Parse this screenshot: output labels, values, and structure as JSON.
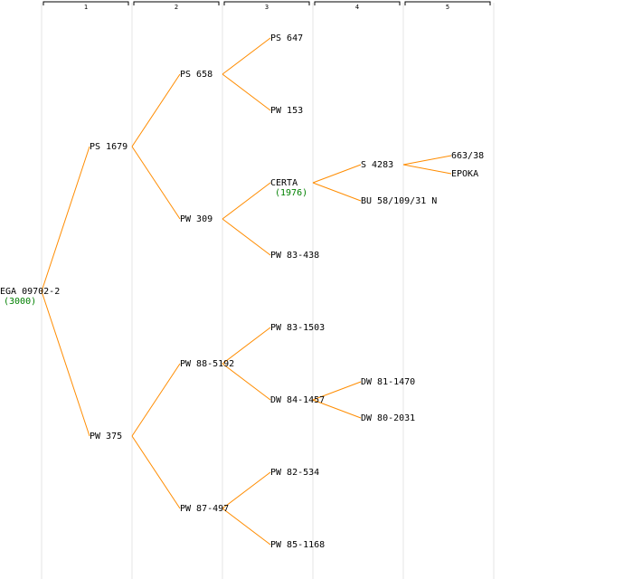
{
  "colors": {
    "edge": "#ff8c00",
    "year": "#008000",
    "column_line": "#e6e6e6",
    "bracket": "#000000"
  },
  "generations": [
    "1",
    "2",
    "3",
    "4",
    "5"
  ],
  "nodes": [
    {
      "id": "n0",
      "label": "EGA 09702-2",
      "year": "(3000)",
      "gen": 0,
      "row": 0
    },
    {
      "id": "n1",
      "label": "PS 1679",
      "gen": 1,
      "row": 1,
      "parent": "n0"
    },
    {
      "id": "n2",
      "label": "PW 375",
      "gen": 1,
      "row": 2,
      "parent": "n0"
    },
    {
      "id": "n3",
      "label": "PS 658",
      "gen": 2,
      "row": 3,
      "parent": "n1"
    },
    {
      "id": "n4",
      "label": "PW 309",
      "gen": 2,
      "row": 4,
      "parent": "n1"
    },
    {
      "id": "n5",
      "label": "PW 88-5192",
      "gen": 2,
      "row": 5,
      "parent": "n2"
    },
    {
      "id": "n6",
      "label": "PW 87-497",
      "gen": 2,
      "row": 6,
      "parent": "n2"
    },
    {
      "id": "n7",
      "label": "PS 647",
      "gen": 3,
      "row": 7,
      "parent": "n3"
    },
    {
      "id": "n8",
      "label": "PW 153",
      "gen": 3,
      "row": 8,
      "parent": "n3"
    },
    {
      "id": "n9",
      "label": "CERTA",
      "year": "(1976)",
      "gen": 3,
      "row": 9,
      "parent": "n4"
    },
    {
      "id": "n10",
      "label": "PW 83-438",
      "gen": 3,
      "row": 10,
      "parent": "n4"
    },
    {
      "id": "n11",
      "label": "PW 83-1503",
      "gen": 3,
      "row": 11,
      "parent": "n5"
    },
    {
      "id": "n12",
      "label": "DW 84-1457",
      "gen": 3,
      "row": 12,
      "parent": "n5"
    },
    {
      "id": "n13",
      "label": "PW 82-534",
      "gen": 3,
      "row": 13,
      "parent": "n6"
    },
    {
      "id": "n14",
      "label": "PW 85-1168",
      "gen": 3,
      "row": 14,
      "parent": "n6"
    },
    {
      "id": "n15",
      "label": "S 4283",
      "gen": 4,
      "row": 15,
      "parent": "n9"
    },
    {
      "id": "n16",
      "label": "BU 58/109/31 N",
      "gen": 4,
      "row": 16,
      "parent": "n9"
    },
    {
      "id": "n17",
      "label": "DW 81-1470",
      "gen": 4,
      "row": 17,
      "parent": "n12"
    },
    {
      "id": "n18",
      "label": "DW 80-2031",
      "gen": 4,
      "row": 18,
      "parent": "n12"
    },
    {
      "id": "n19",
      "label": "663/38",
      "gen": 5,
      "row": 19,
      "parent": "n15"
    },
    {
      "id": "n20",
      "label": "EPOKA",
      "gen": 5,
      "row": 20,
      "parent": "n15"
    }
  ]
}
